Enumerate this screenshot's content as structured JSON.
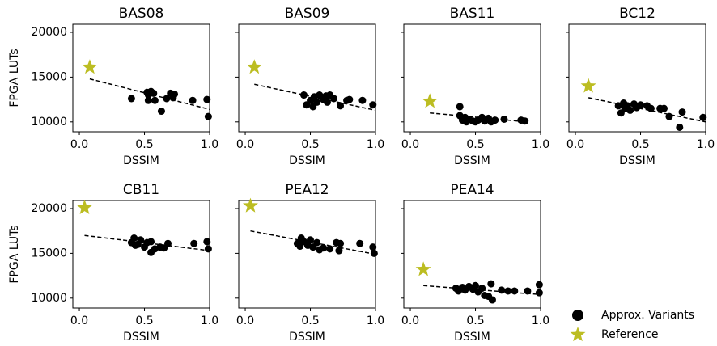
{
  "chart_data": [
    {
      "type": "scatter",
      "title": "BAS08",
      "xlabel": "DSSIM",
      "ylabel": "FPGA LUTs",
      "xlim": [
        -0.05,
        1.0
      ],
      "xticks": [
        {
          "value": 0,
          "label": "0.0"
        },
        0.5,
        {
          "value": 1,
          "label": "1.0"
        }
      ],
      "ylim": [
        8900,
        20900
      ],
      "yticks": [
        10000,
        15000,
        20000
      ],
      "series": [
        {
          "name": "Approx. Variants",
          "color": "#000000",
          "marker": "circle",
          "x": [
            0.4,
            0.52,
            0.53,
            0.55,
            0.53,
            0.58,
            0.57,
            0.63,
            0.67,
            0.7,
            0.72,
            0.73,
            0.87,
            0.98,
            0.99
          ],
          "values": [
            12600,
            13300,
            13000,
            13400,
            12400,
            12400,
            13200,
            11200,
            12600,
            13200,
            12700,
            13100,
            12400,
            12500,
            10600
          ]
        },
        {
          "name": "Reference",
          "color": "#bcbd22",
          "marker": "star",
          "x": [
            0.08
          ],
          "values": [
            16100
          ]
        }
      ],
      "fit": {
        "x": [
          0.08,
          1.0
        ],
        "values": [
          14800,
          11400
        ]
      }
    },
    {
      "type": "scatter",
      "title": "BAS09",
      "xlabel": "DSSIM",
      "xlim": [
        -0.05,
        1.0
      ],
      "xticks": [
        {
          "value": 0,
          "label": "0.0"
        },
        0.5,
        {
          "value": 1,
          "label": "1.0"
        }
      ],
      "ylim": [
        8900,
        20900
      ],
      "yticks": [
        10000,
        15000,
        20000
      ],
      "series": [
        {
          "name": "Approx. Variants",
          "color": "#000000",
          "marker": "circle",
          "x": [
            0.45,
            0.47,
            0.5,
            0.52,
            0.53,
            0.55,
            0.57,
            0.6,
            0.62,
            0.63,
            0.65,
            0.68,
            0.73,
            0.78,
            0.8,
            0.9,
            0.98
          ],
          "values": [
            13000,
            11900,
            12400,
            11700,
            12800,
            12200,
            13000,
            12500,
            12900,
            12200,
            13000,
            12600,
            11800,
            12400,
            12500,
            12400,
            11900
          ]
        },
        {
          "name": "Reference",
          "color": "#bcbd22",
          "marker": "star",
          "x": [
            0.07
          ],
          "values": [
            16100
          ]
        }
      ],
      "fit": {
        "x": [
          0.07,
          1.0
        ],
        "values": [
          14200,
          11300
        ]
      }
    },
    {
      "type": "scatter",
      "title": "BAS11",
      "xlabel": "DSSIM",
      "xlim": [
        -0.05,
        1.0
      ],
      "xticks": [
        {
          "value": 0,
          "label": "0.0"
        },
        0.5,
        {
          "value": 1,
          "label": "1.0"
        }
      ],
      "ylim": [
        8900,
        20900
      ],
      "yticks": [
        10000,
        15000,
        20000
      ],
      "series": [
        {
          "name": "Approx. Variants",
          "color": "#000000",
          "marker": "circle",
          "x": [
            0.38,
            0.38,
            0.4,
            0.42,
            0.43,
            0.45,
            0.48,
            0.5,
            0.52,
            0.55,
            0.57,
            0.6,
            0.62,
            0.65,
            0.72,
            0.85,
            0.88
          ],
          "values": [
            11700,
            10700,
            10200,
            10500,
            10000,
            10300,
            10100,
            10000,
            10200,
            10500,
            10100,
            10400,
            10000,
            10200,
            10300,
            10200,
            10100
          ]
        },
        {
          "name": "Reference",
          "color": "#bcbd22",
          "marker": "star",
          "x": [
            0.15
          ],
          "values": [
            12300
          ]
        }
      ],
      "fit": {
        "x": [
          0.15,
          0.9
        ],
        "values": [
          11000,
          10000
        ]
      }
    },
    {
      "type": "scatter",
      "title": "BC12",
      "xlabel": "DSSIM",
      "xlim": [
        -0.05,
        1.0
      ],
      "xticks": [
        {
          "value": 0,
          "label": "0.0"
        },
        0.5,
        {
          "value": 1,
          "label": "1.0"
        }
      ],
      "ylim": [
        8900,
        20900
      ],
      "yticks": [
        10000,
        15000,
        20000
      ],
      "series": [
        {
          "name": "Approx. Variants",
          "color": "#000000",
          "marker": "circle",
          "x": [
            0.33,
            0.35,
            0.37,
            0.38,
            0.4,
            0.42,
            0.45,
            0.47,
            0.5,
            0.55,
            0.58,
            0.65,
            0.68,
            0.72,
            0.8,
            0.82,
            0.98
          ],
          "values": [
            11800,
            11000,
            12100,
            11500,
            11800,
            11300,
            12000,
            11600,
            11900,
            11800,
            11500,
            11500,
            11500,
            10600,
            9400,
            11100,
            10500
          ]
        },
        {
          "name": "Reference",
          "color": "#bcbd22",
          "marker": "star",
          "x": [
            0.1
          ],
          "values": [
            14000
          ]
        }
      ],
      "fit": {
        "x": [
          0.1,
          1.0
        ],
        "values": [
          12700,
          10000
        ]
      }
    },
    {
      "type": "scatter",
      "title": "CB11",
      "xlabel": "DSSIM",
      "ylabel": "FPGA LUTs",
      "xlim": [
        -0.05,
        1.0
      ],
      "xticks": [
        {
          "value": 0,
          "label": "0.0"
        },
        0.5,
        {
          "value": 1,
          "label": "1.0"
        }
      ],
      "ylim": [
        8900,
        20900
      ],
      "yticks": [
        10000,
        15000,
        20000
      ],
      "series": [
        {
          "name": "Approx. Variants",
          "color": "#000000",
          "marker": "circle",
          "x": [
            0.4,
            0.42,
            0.43,
            0.45,
            0.47,
            0.5,
            0.52,
            0.55,
            0.55,
            0.58,
            0.62,
            0.65,
            0.68,
            0.88,
            0.98,
            0.99
          ],
          "values": [
            16200,
            16700,
            15900,
            16000,
            16500,
            15700,
            16200,
            15100,
            16300,
            15500,
            15700,
            15600,
            16100,
            16100,
            16300,
            15500
          ]
        },
        {
          "name": "Reference",
          "color": "#bcbd22",
          "marker": "star",
          "x": [
            0.04
          ],
          "values": [
            20100
          ]
        }
      ],
      "fit": {
        "x": [
          0.04,
          1.0
        ],
        "values": [
          17000,
          15300
        ]
      }
    },
    {
      "type": "scatter",
      "title": "PEA12",
      "xlabel": "DSSIM",
      "xlim": [
        -0.05,
        1.0
      ],
      "xticks": [
        {
          "value": 0,
          "label": "0.0"
        },
        0.5,
        {
          "value": 1,
          "label": "1.0"
        }
      ],
      "ylim": [
        8900,
        20900
      ],
      "yticks": [
        10000,
        15000,
        20000
      ],
      "series": [
        {
          "name": "Approx. Variants",
          "color": "#000000",
          "marker": "circle",
          "x": [
            0.4,
            0.42,
            0.43,
            0.45,
            0.48,
            0.5,
            0.52,
            0.55,
            0.57,
            0.6,
            0.65,
            0.7,
            0.72,
            0.73,
            0.88,
            0.98,
            0.99
          ],
          "values": [
            16100,
            15800,
            16700,
            16300,
            15900,
            16500,
            15700,
            16200,
            15400,
            15600,
            15500,
            16200,
            15300,
            16100,
            16100,
            15700,
            15000
          ]
        },
        {
          "name": "Reference",
          "color": "#bcbd22",
          "marker": "star",
          "x": [
            0.04
          ],
          "values": [
            20300
          ]
        }
      ],
      "fit": {
        "x": [
          0.04,
          1.0
        ],
        "values": [
          17500,
          14900
        ]
      }
    },
    {
      "type": "scatter",
      "title": "PEA14",
      "xlabel": "DSSIM",
      "xlim": [
        -0.05,
        1.0
      ],
      "xticks": [
        {
          "value": 0,
          "label": "0.0"
        },
        0.5,
        {
          "value": 1,
          "label": "1.0"
        }
      ],
      "ylim": [
        8900,
        20900
      ],
      "yticks": [
        10000,
        15000,
        20000
      ],
      "series": [
        {
          "name": "Approx. Variants",
          "color": "#000000",
          "marker": "circle",
          "x": [
            0.35,
            0.37,
            0.4,
            0.42,
            0.45,
            0.48,
            0.5,
            0.52,
            0.55,
            0.57,
            0.6,
            0.62,
            0.63,
            0.7,
            0.75,
            0.8,
            0.9,
            0.99,
            0.99
          ],
          "values": [
            11100,
            10800,
            11200,
            10900,
            11300,
            11000,
            11400,
            10700,
            11100,
            10300,
            10200,
            11600,
            9800,
            10900,
            10800,
            10800,
            10800,
            10600,
            11500
          ]
        },
        {
          "name": "Reference",
          "color": "#bcbd22",
          "marker": "star",
          "x": [
            0.1
          ],
          "values": [
            13200
          ]
        }
      ],
      "fit": {
        "x": [
          0.1,
          1.0
        ],
        "values": [
          11400,
          10400
        ]
      }
    }
  ]
}
